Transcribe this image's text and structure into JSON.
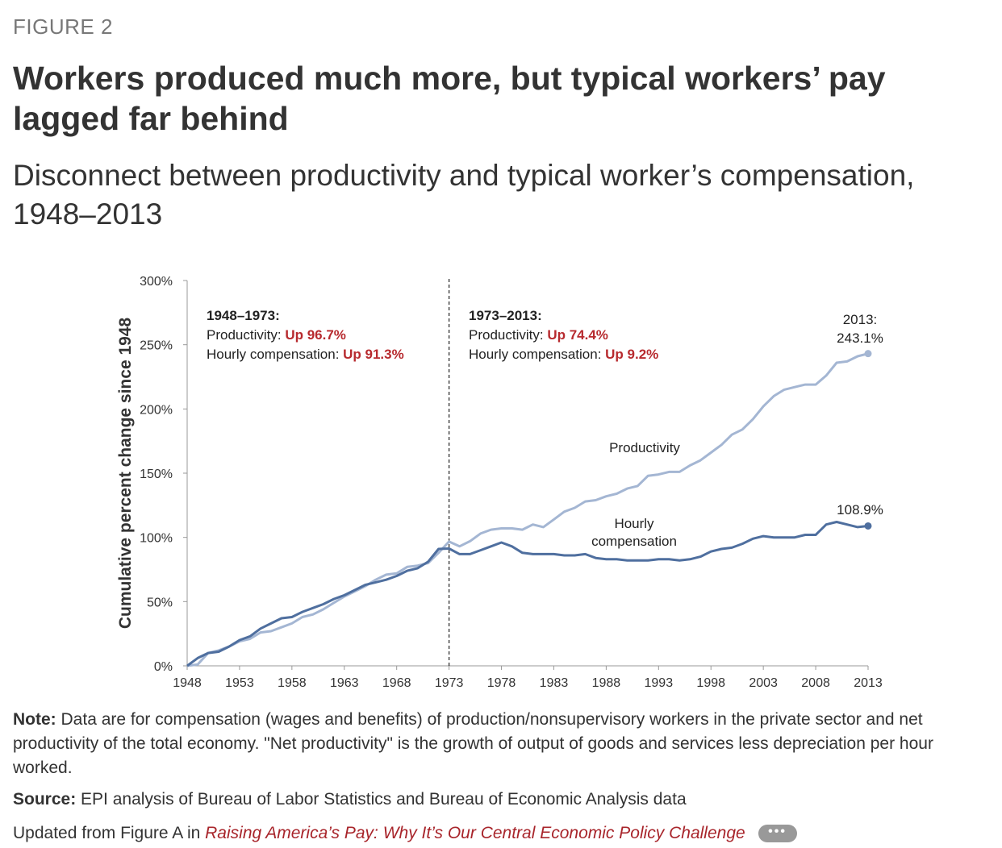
{
  "figure_label": "FIGURE 2",
  "title": "Workers produced much more, but typical workers’ pay lagged far behind",
  "subtitle": "Disconnect between productivity and typical worker’s compensation, 1948–2013",
  "note_label": "Note:",
  "note_text": "Data are for compensation (wages and benefits) of production/nonsupervisory workers in the private sector and net productivity of the total economy. \"Net productivity\" is the growth of output of goods and services less depreciation per hour worked.",
  "source_label": "Source:",
  "source_text": "EPI analysis of Bureau of Labor Statistics and Bureau of Economic Analysis data",
  "updated_prefix": "Updated from Figure A in",
  "updated_link": "Raising America’s Pay: Why It’s Our Central Economic Policy Challenge",
  "more_label": "•••",
  "chart_data": {
    "type": "line",
    "ylabel": "Cumulative percent change since 1948",
    "ylim": [
      0,
      300
    ],
    "yticks": [
      0,
      50,
      100,
      150,
      200,
      250,
      300
    ],
    "ytick_labels": [
      "0%",
      "50%",
      "100%",
      "150%",
      "200%",
      "250%",
      "300%"
    ],
    "xlim": [
      1948,
      2013
    ],
    "xticks": [
      1948,
      1953,
      1958,
      1963,
      1968,
      1973,
      1978,
      1983,
      1988,
      1993,
      1998,
      2003,
      2008,
      2013
    ],
    "divider_year": 1973,
    "colors": {
      "productivity": "#a4b6d3",
      "compensation": "#4f6f9f",
      "highlight": "#b72a2e"
    },
    "periods": [
      {
        "heading": "1948–1973:",
        "productivity_label": "Productivity:",
        "productivity_value": "Up 96.7%",
        "compensation_label": "Hourly compensation:",
        "compensation_value": "Up 91.3%"
      },
      {
        "heading": "1973–2013:",
        "productivity_label": "Productivity:",
        "productivity_value": "Up 74.4%",
        "compensation_label": "Hourly compensation:",
        "compensation_value": "Up 9.2%"
      }
    ],
    "series_labels": {
      "productivity": "Productivity",
      "compensation_line1": "Hourly",
      "compensation_line2": "compensation"
    },
    "end_labels": {
      "productivity_line1": "2013:",
      "productivity_line2": "243.1%",
      "compensation": "108.9%"
    },
    "x": [
      1948,
      1949,
      1950,
      1951,
      1952,
      1953,
      1954,
      1955,
      1956,
      1957,
      1958,
      1959,
      1960,
      1961,
      1962,
      1963,
      1964,
      1965,
      1966,
      1967,
      1968,
      1969,
      1970,
      1971,
      1972,
      1973,
      1974,
      1975,
      1976,
      1977,
      1978,
      1979,
      1980,
      1981,
      1982,
      1983,
      1984,
      1985,
      1986,
      1987,
      1988,
      1989,
      1990,
      1991,
      1992,
      1993,
      1994,
      1995,
      1996,
      1997,
      1998,
      1999,
      2000,
      2001,
      2002,
      2003,
      2004,
      2005,
      2006,
      2007,
      2008,
      2009,
      2010,
      2011,
      2012,
      2013
    ],
    "series": [
      {
        "key": "productivity",
        "values": [
          0,
          1,
          10,
          12,
          15,
          19,
          21,
          26,
          27,
          30,
          33,
          38,
          40,
          44,
          49,
          54,
          58,
          62,
          67,
          71,
          72,
          77,
          78,
          80,
          88,
          96.7,
          93,
          97,
          103,
          106,
          107,
          107,
          106,
          110,
          108,
          114,
          120,
          123,
          128,
          129,
          132,
          134,
          138,
          140,
          148,
          149,
          151,
          151,
          156,
          160,
          166,
          172,
          180,
          184,
          192,
          202,
          210,
          215,
          217,
          219,
          219,
          226,
          236,
          237,
          241,
          243.1
        ]
      },
      {
        "key": "compensation",
        "values": [
          0,
          6,
          10,
          11,
          15,
          20,
          23,
          29,
          33,
          37,
          38,
          42,
          45,
          48,
          52,
          55,
          59,
          63,
          65,
          67,
          70,
          74,
          76,
          81,
          91,
          91.3,
          87,
          87,
          90,
          93,
          96,
          93,
          88,
          87,
          87,
          87,
          86,
          86,
          87,
          84,
          83,
          83,
          82,
          82,
          82,
          83,
          83,
          82,
          83,
          85,
          89,
          91,
          92,
          95,
          99,
          101,
          100,
          100,
          100,
          102,
          102,
          110,
          112,
          110,
          108,
          108.9
        ]
      }
    ]
  }
}
